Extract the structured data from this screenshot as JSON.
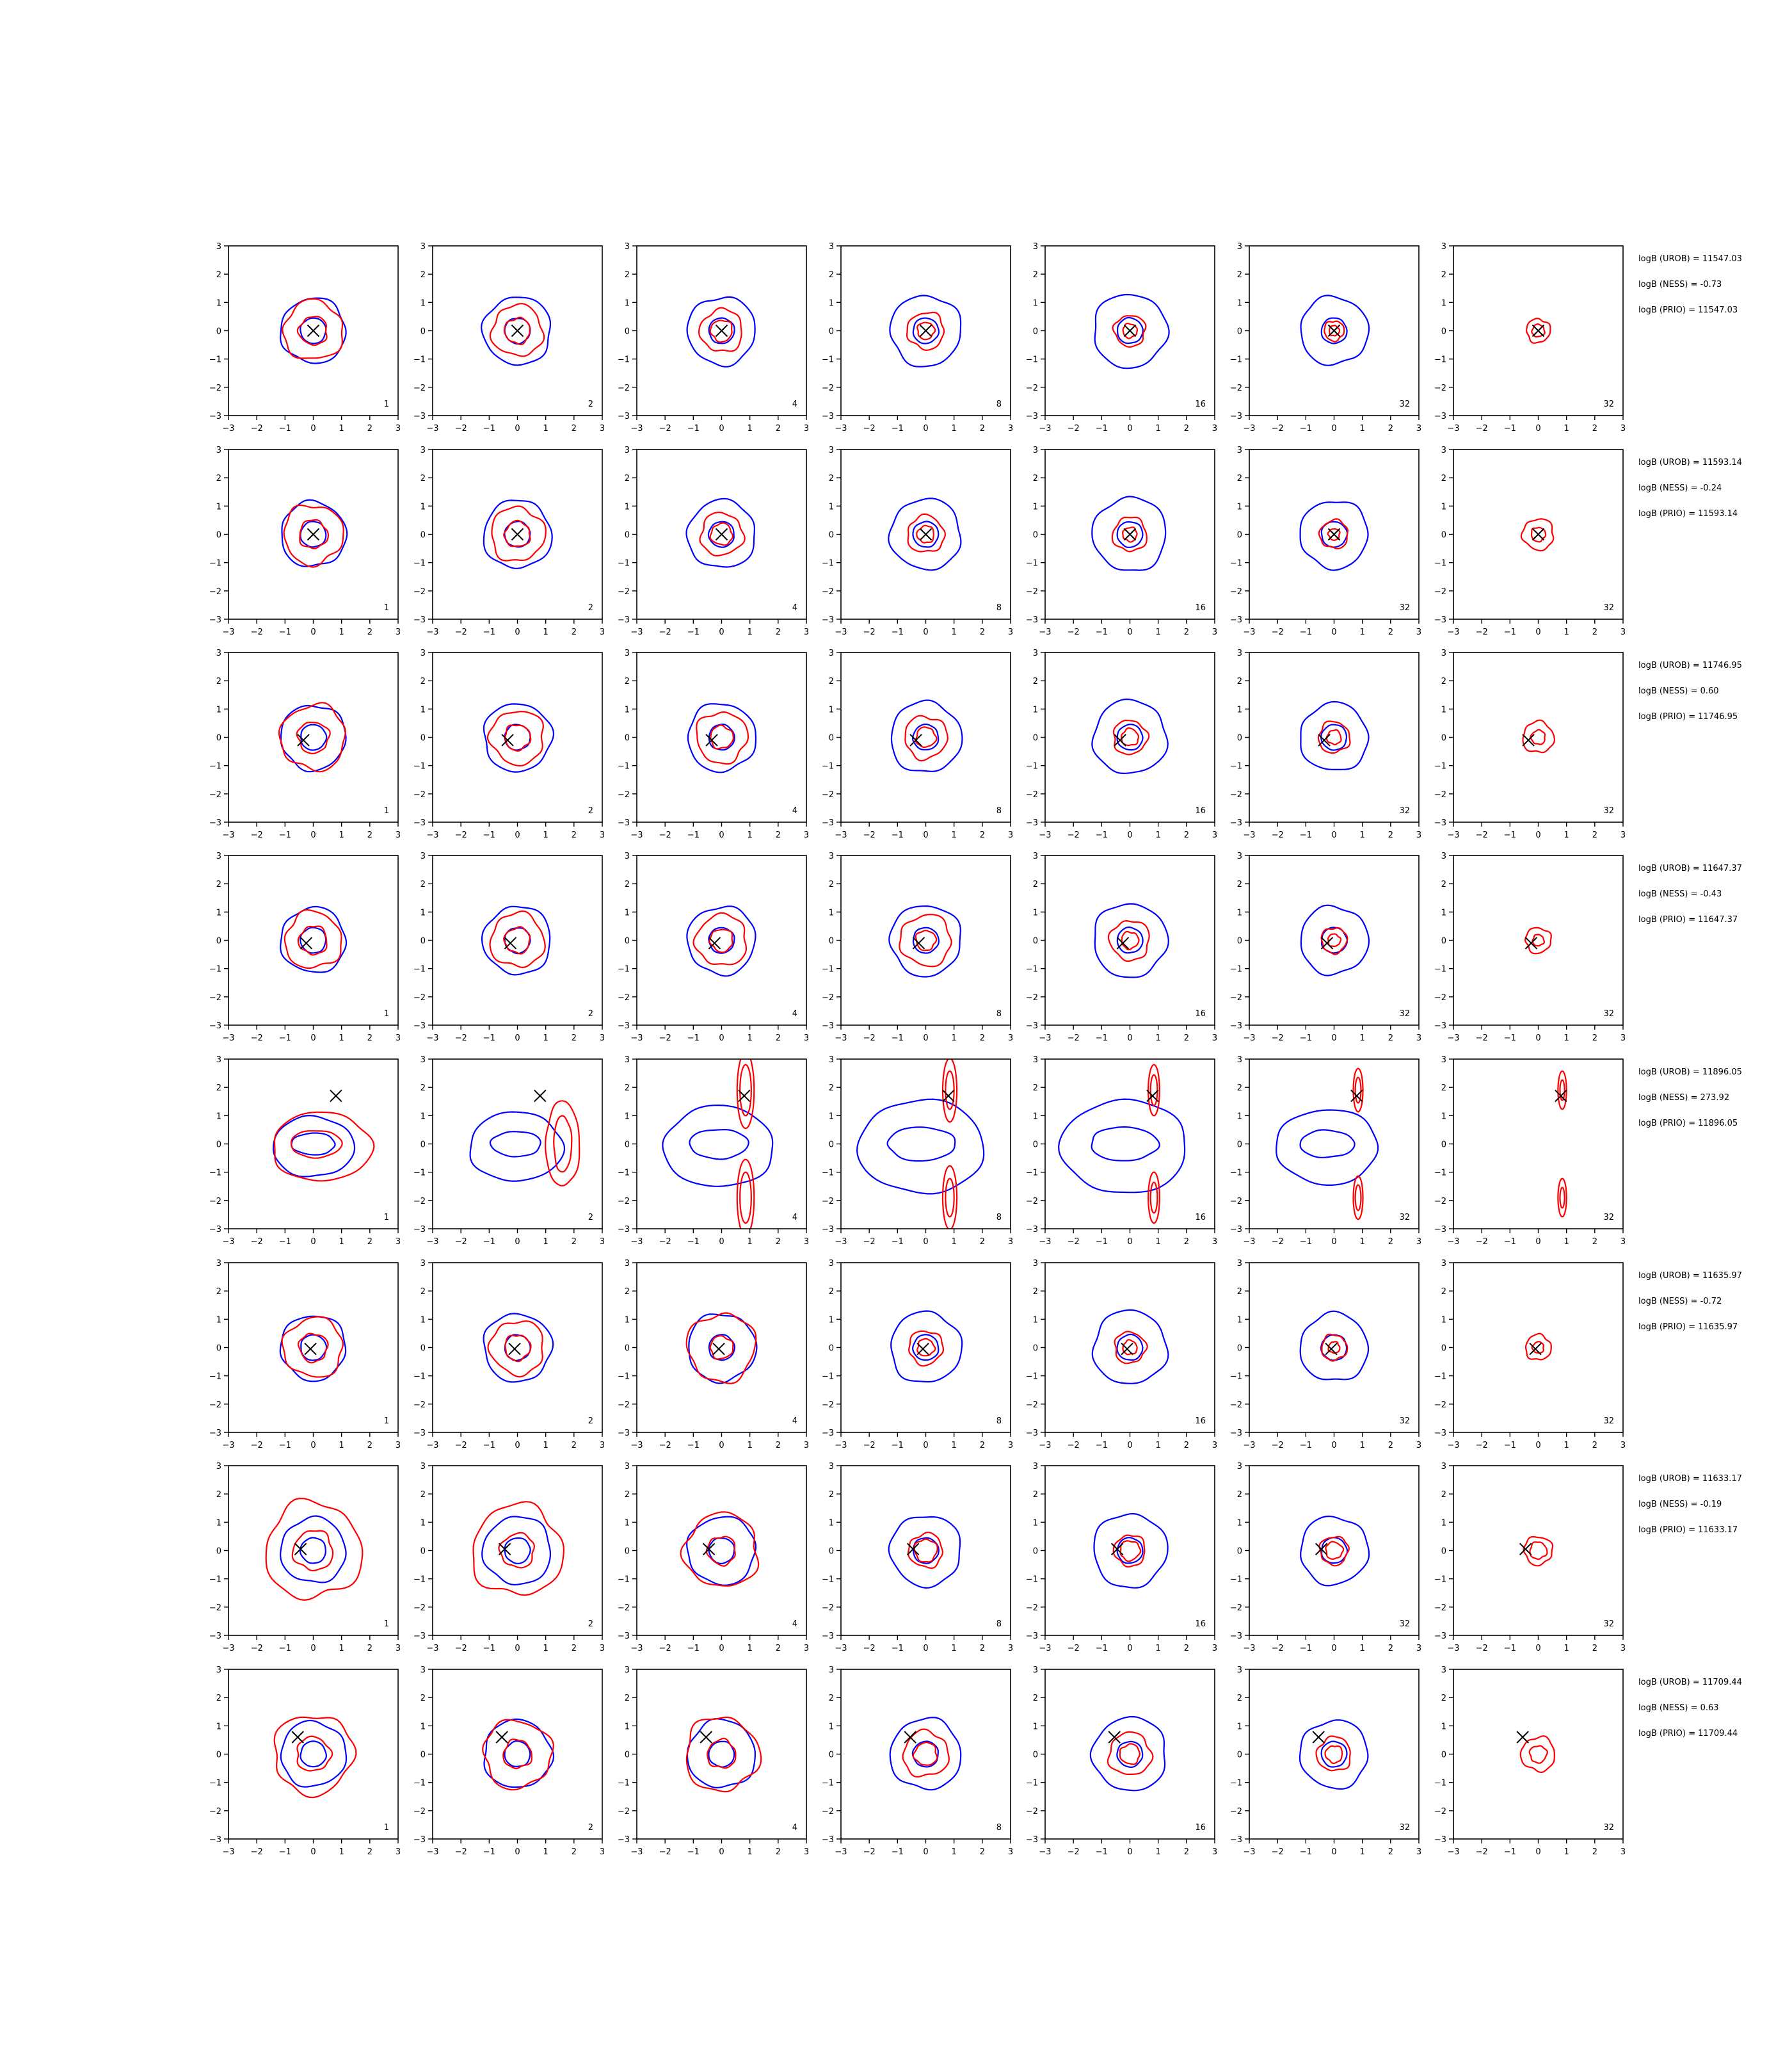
{
  "figure": {
    "type": "contour grid",
    "colors": {
      "blue_contours": "#0000ff",
      "red_contours": "#ff0000",
      "marker": "#000000",
      "axes": "#000000"
    }
  },
  "chart_data": {
    "type": "contour",
    "xlim": [
      -3,
      3
    ],
    "ylim": [
      -3,
      3
    ],
    "xticks": [
      -3,
      -2,
      -1,
      0,
      1,
      2,
      3
    ],
    "yticks": [
      -3,
      -2,
      -1,
      0,
      1,
      2,
      3
    ],
    "tick_labels": [
      "−3",
      "−2",
      "−1",
      "0",
      "1",
      "2",
      "3"
    ],
    "columns": [
      {
        "label": "1",
        "blue": true
      },
      {
        "label": "2",
        "blue": true
      },
      {
        "label": "4",
        "blue": true
      },
      {
        "label": "8",
        "blue": true
      },
      {
        "label": "16",
        "blue": true
      },
      {
        "label": "32",
        "blue": true
      },
      {
        "label": "32",
        "blue": false
      }
    ],
    "rows": [
      {
        "marker": [
          0.0,
          0.0
        ],
        "stats": [
          "logB (UROB) = 11547.03",
          "logB (NESS) = -0.73",
          "logB (PRIO) = 11547.03"
        ],
        "red_r": [
          [
            0.5,
            1.05
          ],
          [
            0.45,
            0.9
          ],
          [
            0.38,
            0.75
          ],
          [
            0.3,
            0.65
          ],
          [
            0.25,
            0.55
          ],
          [
            0.18,
            0.35
          ],
          [
            0.22,
            0.42
          ]
        ]
      },
      {
        "marker": [
          0.0,
          0.0
        ],
        "stats": [
          "logB (UROB) = 11593.14",
          "logB (NESS) = -0.24",
          "logB (PRIO) = 11593.14"
        ],
        "red_r": [
          [
            0.5,
            1.05
          ],
          [
            0.45,
            0.95
          ],
          [
            0.38,
            0.75
          ],
          [
            0.3,
            0.65
          ],
          [
            0.25,
            0.6
          ],
          [
            0.2,
            0.5
          ],
          [
            0.25,
            0.55
          ]
        ]
      },
      {
        "marker": [
          -0.35,
          -0.1
        ],
        "stats": [
          "logB (UROB) = 11746.95",
          "logB (NESS) = 0.60",
          "logB (PRIO) = 11746.95"
        ],
        "red_r": [
          [
            0.55,
            1.15
          ],
          [
            0.45,
            0.95
          ],
          [
            0.4,
            0.9
          ],
          [
            0.35,
            0.75
          ],
          [
            0.3,
            0.6
          ],
          [
            0.25,
            0.55
          ],
          [
            0.25,
            0.55
          ]
        ]
      },
      {
        "marker": [
          -0.25,
          -0.1
        ],
        "stats": [
          "logB (UROB) = 11647.37",
          "logB (NESS) = -0.43",
          "logB (PRIO) = 11647.37"
        ],
        "red_r": [
          [
            0.5,
            1.0
          ],
          [
            0.45,
            0.95
          ],
          [
            0.4,
            0.9
          ],
          [
            0.35,
            0.9
          ],
          [
            0.3,
            0.7
          ],
          [
            0.22,
            0.45
          ],
          [
            0.2,
            0.45
          ]
        ]
      },
      {
        "marker": [
          0.8,
          1.7
        ],
        "stats": [
          "logB (UROB) = 11896.05",
          "logB (NESS) = 273.92",
          "logB (PRIO) = 11896.05"
        ],
        "red_r": [
          [
            0.7,
            1.5
          ],
          [
            0.8,
            1.4
          ],
          [
            0.2,
            0.3
          ],
          [
            0.15,
            0.25
          ],
          [
            0.12,
            0.2
          ],
          [
            0.1,
            0.17
          ],
          [
            0.08,
            0.15
          ]
        ]
      },
      {
        "marker": [
          -0.1,
          -0.05
        ],
        "stats": [
          "logB (UROB) = 11635.97",
          "logB (NESS) = -0.72",
          "logB (PRIO) = 11635.97"
        ],
        "red_r": [
          [
            0.5,
            1.05
          ],
          [
            0.45,
            0.95
          ],
          [
            0.4,
            1.2
          ],
          [
            0.3,
            0.6
          ],
          [
            0.25,
            0.55
          ],
          [
            0.2,
            0.45
          ],
          [
            0.2,
            0.45
          ]
        ]
      },
      {
        "marker": [
          -0.45,
          0.05
        ],
        "stats": [
          "logB (UROB) = 11633.17",
          "logB (NESS) = -0.19",
          "logB (PRIO) = 11633.17"
        ],
        "red_r": [
          [
            0.7,
            1.7
          ],
          [
            0.6,
            1.6
          ],
          [
            0.5,
            1.3
          ],
          [
            0.4,
            0.6
          ],
          [
            0.35,
            0.55
          ],
          [
            0.3,
            0.5
          ],
          [
            0.3,
            0.5
          ]
        ]
      },
      {
        "marker": [
          -0.55,
          0.6
        ],
        "stats": [
          "logB (UROB) = 11709.44",
          "logB (NESS) = 0.63",
          "logB (PRIO) = 11709.44"
        ],
        "red_r": [
          [
            0.6,
            1.4
          ],
          [
            0.5,
            1.2
          ],
          [
            0.5,
            1.3
          ],
          [
            0.4,
            0.8
          ],
          [
            0.35,
            0.75
          ],
          [
            0.3,
            0.6
          ],
          [
            0.3,
            0.6
          ]
        ]
      }
    ]
  }
}
